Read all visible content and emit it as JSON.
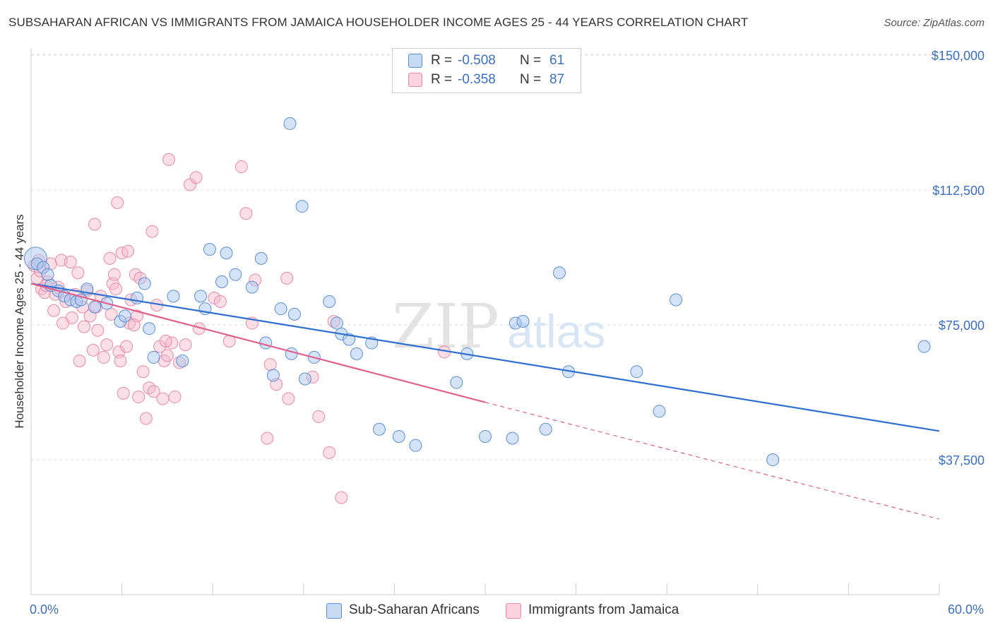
{
  "title": "SUBSAHARAN AFRICAN VS IMMIGRANTS FROM JAMAICA HOUSEHOLDER INCOME AGES 25 - 44 YEARS CORRELATION CHART",
  "source": "Source: ZipAtlas.com",
  "watermark": {
    "zip": "ZIP",
    "atlas": "atlas"
  },
  "legend": {
    "rows": [
      {
        "r_label": "R =",
        "r_value": "-0.508",
        "n_label": "N =",
        "n_value": "61",
        "color": "#a9c8ef"
      },
      {
        "r_label": "R =",
        "r_value": "-0.358",
        "n_label": "N =",
        "n_value": "87",
        "color": "#f5b8ca"
      }
    ]
  },
  "bottom_legend": {
    "series1": "Sub-Saharan Africans",
    "series2": "Immigrants from Jamaica"
  },
  "chart_data": {
    "type": "scatter",
    "title": "SUBSAHARAN AFRICAN VS IMMIGRANTS FROM JAMAICA HOUSEHOLDER INCOME AGES 25 - 44 YEARS CORRELATION CHART",
    "xlabel": "",
    "ylabel": "Householder Income Ages 25 - 44 years",
    "xlim": [
      0,
      60
    ],
    "ylim": [
      0,
      152000
    ],
    "x_tick_labels": [
      "0.0%",
      "60.0%"
    ],
    "y_ticks": [
      37500,
      75000,
      112500,
      150000
    ],
    "y_tick_labels": [
      "$37,500",
      "$75,000",
      "$112,500",
      "$150,000"
    ],
    "grid": "horizontal dashed",
    "legend_position": "top-center",
    "colors": {
      "series1_fill": "#a9c8ef",
      "series1_stroke": "#5b8fd6",
      "series1_line": "#2f6fcf",
      "series2_fill": "#f5b8ca",
      "series2_stroke": "#e88aa8",
      "series2_line": "#e0608e"
    },
    "series": [
      {
        "name": "Sub-Saharan Africans",
        "r": -0.508,
        "n": 61,
        "trend": {
          "x": [
            0,
            60
          ],
          "y": [
            86500,
            45500
          ],
          "style": "solid"
        },
        "points": [
          [
            0.3,
            93500
          ],
          [
            0.4,
            92000
          ],
          [
            0.8,
            91000
          ],
          [
            1.1,
            89000
          ],
          [
            1.3,
            86000
          ],
          [
            1.8,
            84500
          ],
          [
            2.2,
            83000
          ],
          [
            2.6,
            82000
          ],
          [
            3.0,
            81500
          ],
          [
            3.3,
            82000
          ],
          [
            3.7,
            85000
          ],
          [
            4.2,
            80000
          ],
          [
            5.0,
            81000
          ],
          [
            5.9,
            76000
          ],
          [
            6.2,
            77500
          ],
          [
            7.0,
            82500
          ],
          [
            7.5,
            86500
          ],
          [
            7.8,
            74000
          ],
          [
            8.1,
            66000
          ],
          [
            9.4,
            83000
          ],
          [
            10.0,
            65000
          ],
          [
            11.2,
            83000
          ],
          [
            11.5,
            79500
          ],
          [
            11.8,
            96000
          ],
          [
            12.6,
            87000
          ],
          [
            12.9,
            95000
          ],
          [
            13.5,
            89000
          ],
          [
            14.6,
            85500
          ],
          [
            15.2,
            93500
          ],
          [
            15.5,
            70000
          ],
          [
            16.0,
            61000
          ],
          [
            16.5,
            79500
          ],
          [
            17.2,
            67000
          ],
          [
            17.1,
            131000
          ],
          [
            17.4,
            78000
          ],
          [
            17.9,
            108000
          ],
          [
            18.1,
            60000
          ],
          [
            18.7,
            66000
          ],
          [
            19.7,
            81500
          ],
          [
            20.2,
            75500
          ],
          [
            20.5,
            72500
          ],
          [
            21.0,
            71000
          ],
          [
            21.5,
            67000
          ],
          [
            22.5,
            70000
          ],
          [
            23.0,
            46000
          ],
          [
            24.3,
            44000
          ],
          [
            25.4,
            41500
          ],
          [
            28.1,
            59000
          ],
          [
            28.8,
            67000
          ],
          [
            30.0,
            44000
          ],
          [
            31.8,
            43500
          ],
          [
            32.0,
            75500
          ],
          [
            32.5,
            76000
          ],
          [
            34.0,
            46000
          ],
          [
            34.9,
            89500
          ],
          [
            35.5,
            62000
          ],
          [
            40.0,
            62000
          ],
          [
            41.5,
            51000
          ],
          [
            42.6,
            82000
          ],
          [
            49.0,
            37500
          ],
          [
            59.0,
            69000
          ]
        ]
      },
      {
        "name": "Immigrants from Jamaica",
        "r": -0.358,
        "n": 87,
        "trend": {
          "x": [
            0,
            30,
            60
          ],
          "y": [
            86500,
            53500,
            21000
          ],
          "style": "solid to 30, dashed beyond"
        },
        "points": [
          [
            0.2,
            91500
          ],
          [
            0.4,
            88000
          ],
          [
            0.5,
            93000
          ],
          [
            0.6,
            90000
          ],
          [
            0.7,
            85000
          ],
          [
            0.9,
            84000
          ],
          [
            1.1,
            87000
          ],
          [
            1.3,
            92000
          ],
          [
            1.5,
            79000
          ],
          [
            1.6,
            83500
          ],
          [
            1.8,
            85500
          ],
          [
            2.0,
            93000
          ],
          [
            2.3,
            81500
          ],
          [
            2.6,
            92500
          ],
          [
            2.7,
            77000
          ],
          [
            2.9,
            83500
          ],
          [
            3.1,
            89500
          ],
          [
            3.2,
            65000
          ],
          [
            3.4,
            80000
          ],
          [
            3.5,
            74500
          ],
          [
            3.7,
            84500
          ],
          [
            3.9,
            77500
          ],
          [
            4.1,
            68000
          ],
          [
            4.2,
            103000
          ],
          [
            4.4,
            73500
          ],
          [
            4.6,
            83000
          ],
          [
            4.8,
            66000
          ],
          [
            5.0,
            69500
          ],
          [
            5.2,
            93500
          ],
          [
            5.4,
            86500
          ],
          [
            5.5,
            89000
          ],
          [
            5.6,
            85000
          ],
          [
            5.7,
            109000
          ],
          [
            5.8,
            67500
          ],
          [
            5.9,
            65000
          ],
          [
            6.0,
            95000
          ],
          [
            6.1,
            56000
          ],
          [
            6.3,
            69000
          ],
          [
            6.4,
            95500
          ],
          [
            6.5,
            75500
          ],
          [
            6.6,
            82000
          ],
          [
            6.9,
            89000
          ],
          [
            7.0,
            77500
          ],
          [
            7.1,
            55000
          ],
          [
            7.2,
            88000
          ],
          [
            7.4,
            62000
          ],
          [
            7.6,
            49000
          ],
          [
            7.8,
            57500
          ],
          [
            8.0,
            101000
          ],
          [
            8.1,
            56500
          ],
          [
            8.3,
            80500
          ],
          [
            8.5,
            69000
          ],
          [
            8.7,
            54500
          ],
          [
            8.8,
            65000
          ],
          [
            9.0,
            66500
          ],
          [
            9.1,
            121000
          ],
          [
            9.3,
            70000
          ],
          [
            9.5,
            55000
          ],
          [
            10.2,
            69500
          ],
          [
            10.5,
            114000
          ],
          [
            10.9,
            116000
          ],
          [
            11.1,
            74000
          ],
          [
            12.1,
            82500
          ],
          [
            12.5,
            81500
          ],
          [
            13.1,
            70500
          ],
          [
            13.9,
            119000
          ],
          [
            14.2,
            106000
          ],
          [
            14.6,
            75500
          ],
          [
            14.8,
            87500
          ],
          [
            15.6,
            43500
          ],
          [
            15.8,
            64000
          ],
          [
            16.2,
            58500
          ],
          [
            16.9,
            88000
          ],
          [
            17.0,
            54500
          ],
          [
            18.6,
            60500
          ],
          [
            19.0,
            49500
          ],
          [
            19.7,
            39500
          ],
          [
            20.0,
            76000
          ],
          [
            20.5,
            27000
          ],
          [
            27.3,
            67500
          ],
          [
            1.0,
            86000
          ],
          [
            2.1,
            75500
          ],
          [
            4.3,
            80000
          ],
          [
            5.3,
            78000
          ],
          [
            6.8,
            75000
          ],
          [
            9.8,
            64500
          ],
          [
            8.9,
            70500
          ]
        ]
      }
    ]
  }
}
